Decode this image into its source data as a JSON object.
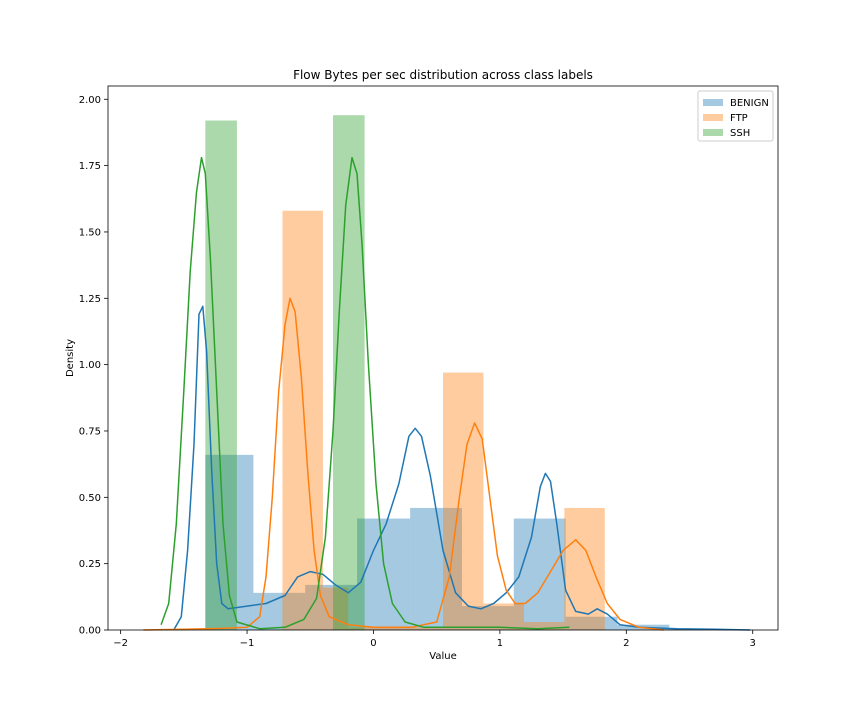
{
  "chart_data": {
    "type": "histogram+kde",
    "title": "Flow Bytes per sec distribution across class labels",
    "xlabel": "Value",
    "ylabel": "Density",
    "xlim": [
      -2.1,
      3.2
    ],
    "ylim": [
      0,
      2.05
    ],
    "x_ticks": [
      -2,
      -1,
      0,
      1,
      2,
      3
    ],
    "x_tick_labels": [
      "−2",
      "−1",
      "0",
      "1",
      "2",
      "3"
    ],
    "y_ticks": [
      0,
      0.25,
      0.5,
      0.75,
      1.0,
      1.25,
      1.5,
      1.75,
      2.0
    ],
    "y_tick_labels": [
      "0.00",
      "0.25",
      "0.50",
      "0.75",
      "1.00",
      "1.25",
      "1.50",
      "1.75",
      "2.00"
    ],
    "legend_position": "upper right",
    "grid": false,
    "series": [
      {
        "name": "BENIGN",
        "color": "#1f77b4",
        "bars": [
          {
            "x0": -1.33,
            "x1": -0.95,
            "h": 0.66
          },
          {
            "x0": -0.95,
            "x1": -0.54,
            "h": 0.14
          },
          {
            "x0": -0.54,
            "x1": -0.13,
            "h": 0.17
          },
          {
            "x0": -0.13,
            "x1": 0.29,
            "h": 0.42
          },
          {
            "x0": 0.29,
            "x1": 0.7,
            "h": 0.46
          },
          {
            "x0": 0.7,
            "x1": 1.11,
            "h": 0.09
          },
          {
            "x0": 1.11,
            "x1": 1.52,
            "h": 0.42
          },
          {
            "x0": 1.52,
            "x1": 1.93,
            "h": 0.05
          },
          {
            "x0": 1.93,
            "x1": 2.34,
            "h": 0.02
          },
          {
            "x0": 2.34,
            "x1": 2.76,
            "h": 0.005
          }
        ],
        "kde": [
          [
            -1.58,
            0
          ],
          [
            -1.52,
            0.05
          ],
          [
            -1.47,
            0.3
          ],
          [
            -1.42,
            0.7
          ],
          [
            -1.38,
            1.19
          ],
          [
            -1.35,
            1.22
          ],
          [
            -1.32,
            1.05
          ],
          [
            -1.28,
            0.6
          ],
          [
            -1.24,
            0.25
          ],
          [
            -1.2,
            0.1
          ],
          [
            -1.15,
            0.08
          ],
          [
            -1.0,
            0.09
          ],
          [
            -0.85,
            0.1
          ],
          [
            -0.7,
            0.13
          ],
          [
            -0.6,
            0.2
          ],
          [
            -0.5,
            0.22
          ],
          [
            -0.4,
            0.21
          ],
          [
            -0.3,
            0.17
          ],
          [
            -0.2,
            0.14
          ],
          [
            -0.1,
            0.18
          ],
          [
            0.0,
            0.3
          ],
          [
            0.1,
            0.4
          ],
          [
            0.2,
            0.55
          ],
          [
            0.28,
            0.73
          ],
          [
            0.33,
            0.76
          ],
          [
            0.38,
            0.73
          ],
          [
            0.45,
            0.58
          ],
          [
            0.55,
            0.3
          ],
          [
            0.65,
            0.14
          ],
          [
            0.75,
            0.09
          ],
          [
            0.85,
            0.08
          ],
          [
            0.95,
            0.1
          ],
          [
            1.05,
            0.14
          ],
          [
            1.15,
            0.2
          ],
          [
            1.25,
            0.35
          ],
          [
            1.32,
            0.54
          ],
          [
            1.36,
            0.59
          ],
          [
            1.4,
            0.56
          ],
          [
            1.45,
            0.4
          ],
          [
            1.52,
            0.15
          ],
          [
            1.6,
            0.07
          ],
          [
            1.7,
            0.06
          ],
          [
            1.77,
            0.08
          ],
          [
            1.85,
            0.06
          ],
          [
            1.95,
            0.02
          ],
          [
            2.1,
            0.01
          ],
          [
            2.4,
            0.005
          ],
          [
            2.7,
            0.003
          ],
          [
            2.98,
            0
          ]
        ]
      },
      {
        "name": "FTP",
        "color": "#ff7f0e",
        "bars": [
          {
            "x0": -1.33,
            "x1": -1.1,
            "h": 0.0
          },
          {
            "x0": -0.72,
            "x1": -0.4,
            "h": 1.58
          },
          {
            "x0": -0.4,
            "x1": -0.2,
            "h": 0.16
          },
          {
            "x0": -0.2,
            "x1": 0.55,
            "h": 0.01
          },
          {
            "x0": 0.55,
            "x1": 0.87,
            "h": 0.97
          },
          {
            "x0": 0.87,
            "x1": 1.19,
            "h": 0.1
          },
          {
            "x0": 1.19,
            "x1": 1.51,
            "h": 0.03
          },
          {
            "x0": 1.51,
            "x1": 1.83,
            "h": 0.46
          }
        ],
        "kde": [
          [
            -1.82,
            0
          ],
          [
            -1.5,
            0.003
          ],
          [
            -1.2,
            0.006
          ],
          [
            -1.0,
            0.01
          ],
          [
            -0.9,
            0.05
          ],
          [
            -0.85,
            0.2
          ],
          [
            -0.8,
            0.5
          ],
          [
            -0.75,
            0.9
          ],
          [
            -0.7,
            1.15
          ],
          [
            -0.66,
            1.25
          ],
          [
            -0.62,
            1.2
          ],
          [
            -0.57,
            0.95
          ],
          [
            -0.52,
            0.6
          ],
          [
            -0.47,
            0.3
          ],
          [
            -0.42,
            0.13
          ],
          [
            -0.35,
            0.05
          ],
          [
            -0.2,
            0.02
          ],
          [
            0.0,
            0.01
          ],
          [
            0.3,
            0.01
          ],
          [
            0.5,
            0.03
          ],
          [
            0.6,
            0.2
          ],
          [
            0.68,
            0.5
          ],
          [
            0.74,
            0.7
          ],
          [
            0.8,
            0.78
          ],
          [
            0.86,
            0.72
          ],
          [
            0.92,
            0.5
          ],
          [
            0.98,
            0.28
          ],
          [
            1.05,
            0.15
          ],
          [
            1.12,
            0.1
          ],
          [
            1.2,
            0.1
          ],
          [
            1.3,
            0.14
          ],
          [
            1.4,
            0.22
          ],
          [
            1.5,
            0.3
          ],
          [
            1.6,
            0.34
          ],
          [
            1.68,
            0.3
          ],
          [
            1.76,
            0.2
          ],
          [
            1.85,
            0.1
          ],
          [
            1.95,
            0.04
          ],
          [
            2.1,
            0.01
          ],
          [
            2.3,
            0
          ]
        ]
      },
      {
        "name": "SSH",
        "color": "#2ca02c",
        "bars": [
          {
            "x0": -1.33,
            "x1": -1.08,
            "h": 1.92
          },
          {
            "x0": -0.32,
            "x1": -0.07,
            "h": 1.94
          },
          {
            "x0": -0.56,
            "x1": -0.32,
            "h": 0.0
          }
        ],
        "kde": [
          [
            -1.68,
            0.02
          ],
          [
            -1.62,
            0.1
          ],
          [
            -1.56,
            0.4
          ],
          [
            -1.5,
            0.9
          ],
          [
            -1.45,
            1.35
          ],
          [
            -1.4,
            1.65
          ],
          [
            -1.36,
            1.78
          ],
          [
            -1.33,
            1.72
          ],
          [
            -1.29,
            1.4
          ],
          [
            -1.24,
            0.9
          ],
          [
            -1.19,
            0.4
          ],
          [
            -1.14,
            0.13
          ],
          [
            -1.08,
            0.03
          ],
          [
            -0.9,
            0.005
          ],
          [
            -0.7,
            0.01
          ],
          [
            -0.55,
            0.04
          ],
          [
            -0.45,
            0.12
          ],
          [
            -0.38,
            0.35
          ],
          [
            -0.32,
            0.75
          ],
          [
            -0.27,
            1.2
          ],
          [
            -0.22,
            1.6
          ],
          [
            -0.17,
            1.78
          ],
          [
            -0.13,
            1.72
          ],
          [
            -0.09,
            1.45
          ],
          [
            -0.04,
            1.0
          ],
          [
            0.02,
            0.55
          ],
          [
            0.08,
            0.25
          ],
          [
            0.15,
            0.1
          ],
          [
            0.25,
            0.03
          ],
          [
            0.4,
            0.01
          ],
          [
            0.7,
            0.01
          ],
          [
            1.0,
            0.01
          ],
          [
            1.3,
            0.005
          ],
          [
            1.55,
            0.01
          ]
        ]
      }
    ]
  }
}
